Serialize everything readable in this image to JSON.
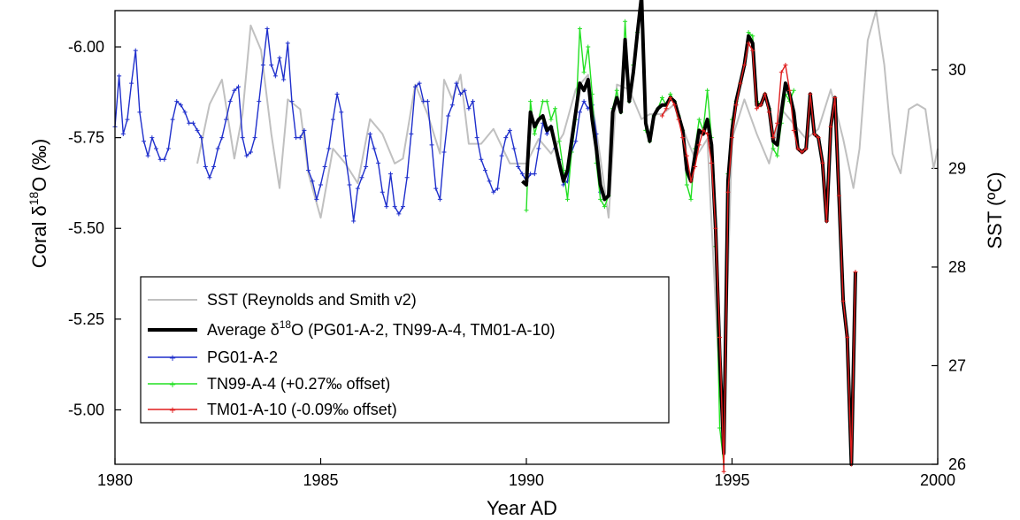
{
  "chart_data": {
    "type": "line",
    "title": "",
    "xlabel": "Year AD",
    "ylabel": {
      "pre": "Coral δ",
      "sup": "18",
      "post": "O (‰)"
    },
    "y2label": "SST (ºC)",
    "xlim": [
      1980,
      2000
    ],
    "ylim": [
      -6.1,
      -4.85
    ],
    "y_inverted": true,
    "y2lim": [
      26,
      30.6
    ],
    "x_ticks": [
      "1980",
      "1985",
      "1990",
      "1995",
      "2000"
    ],
    "y_ticks": [
      "-6.00",
      "-5.75",
      "-5.50",
      "-5.25",
      "-5.00"
    ],
    "y2_ticks": [
      "26",
      "27",
      "28",
      "29",
      "30"
    ],
    "grid": false,
    "legend_position": "bottom-left",
    "legend": [
      {
        "label": "SST (Reynolds and Smith v2)",
        "color": "#c0c0c0"
      },
      {
        "label_pre": "Average δ",
        "label_sup": "18",
        "label_post": "O (PG01-A-2, TN99-A-4, TM01-A-10)",
        "color": "#000000"
      },
      {
        "label": "PG01-A-2",
        "color": "#1f2fcc"
      },
      {
        "label": "TN99-A-4 (+0.27‰ offset)",
        "color": "#22e022"
      },
      {
        "label": "TM01-A-10 (-0.09‰ offset)",
        "color": "#e01e1e"
      }
    ],
    "series": [
      {
        "id": "sst",
        "axis": "y2",
        "color": "#c0c0c0",
        "x": [
          1982.0,
          1982.3,
          1982.6,
          1982.9,
          1983.1,
          1983.3,
          1983.55,
          1983.8,
          1984.0,
          1984.2,
          1984.5,
          1984.7,
          1985.0,
          1985.3,
          1985.6,
          1985.9,
          1986.2,
          1986.5,
          1986.8,
          1987.0,
          1987.3,
          1987.6,
          1987.9,
          1988.0,
          1988.2,
          1988.4,
          1988.6,
          1988.9,
          1989.2,
          1989.6,
          1990.0,
          1990.3,
          1990.6,
          1990.9,
          1991.2,
          1991.5,
          1991.8,
          1992.0,
          1992.2,
          1992.5,
          1992.8,
          1993.0,
          1993.3,
          1993.6,
          1993.9,
          1994.1,
          1994.4,
          1994.65,
          1994.8,
          1995.0,
          1995.3,
          1995.6,
          1995.9,
          1996.2,
          1996.5,
          1996.8,
          1997.1,
          1997.4,
          1997.7,
          1997.95,
          1998.1,
          1998.3,
          1998.5,
          1998.7,
          1998.9,
          1999.1,
          1999.3,
          1999.5,
          1999.7,
          1999.9,
          2000.0
        ],
        "y": [
          29.05,
          29.65,
          29.9,
          29.1,
          29.55,
          30.45,
          30.2,
          29.35,
          28.8,
          29.7,
          29.6,
          28.95,
          28.5,
          29.2,
          29.05,
          28.85,
          29.5,
          29.35,
          29.05,
          29.1,
          29.85,
          29.55,
          29.15,
          29.9,
          29.7,
          29.95,
          29.25,
          29.25,
          29.4,
          29.05,
          29.05,
          29.3,
          29.15,
          29.35,
          29.8,
          29.95,
          29.1,
          28.5,
          29.85,
          29.8,
          29.5,
          29.55,
          29.55,
          29.65,
          29.3,
          29.1,
          29.3,
          27.2,
          26.55,
          29.3,
          29.7,
          29.35,
          29.05,
          29.6,
          29.45,
          29.3,
          29.4,
          29.8,
          29.3,
          28.8,
          29.2,
          30.3,
          30.6,
          30.05,
          29.15,
          28.95,
          29.6,
          29.65,
          29.6,
          29.0,
          29.2
        ]
      },
      {
        "id": "pg01",
        "axis": "y",
        "color": "#1f2fcc",
        "x": [
          1980.0,
          1980.1,
          1980.2,
          1980.3,
          1980.4,
          1980.5,
          1980.6,
          1980.7,
          1980.8,
          1980.9,
          1981.0,
          1981.1,
          1981.2,
          1981.3,
          1981.4,
          1981.5,
          1981.6,
          1981.7,
          1981.8,
          1981.9,
          1982.0,
          1982.1,
          1982.2,
          1982.3,
          1982.4,
          1982.5,
          1982.6,
          1982.7,
          1982.8,
          1982.9,
          1983.0,
          1983.1,
          1983.2,
          1983.3,
          1983.4,
          1983.5,
          1983.6,
          1983.7,
          1983.8,
          1983.9,
          1984.0,
          1984.1,
          1984.2,
          1984.3,
          1984.4,
          1984.5,
          1984.6,
          1984.7,
          1984.8,
          1984.9,
          1985.0,
          1985.1,
          1985.2,
          1985.3,
          1985.4,
          1985.5,
          1985.6,
          1985.7,
          1985.8,
          1985.9,
          1986.0,
          1986.1,
          1986.2,
          1986.3,
          1986.4,
          1986.5,
          1986.6,
          1986.7,
          1986.8,
          1986.9,
          1987.0,
          1987.1,
          1987.2,
          1987.3,
          1987.4,
          1987.5,
          1987.6,
          1987.7,
          1987.8,
          1987.9,
          1988.0,
          1988.1,
          1988.2,
          1988.3,
          1988.4,
          1988.5,
          1988.6,
          1988.7,
          1988.8,
          1988.9,
          1989.0,
          1989.1,
          1989.2,
          1989.3,
          1989.4,
          1989.5,
          1989.6,
          1989.7,
          1989.8,
          1989.9,
          1990.0,
          1990.1,
          1990.2,
          1990.3,
          1990.4,
          1990.5,
          1990.6,
          1990.7,
          1990.8,
          1990.9,
          1991.0,
          1991.1,
          1991.2,
          1991.3,
          1991.4,
          1991.5,
          1991.6,
          1991.7,
          1991.8
        ],
        "y": [
          -5.78,
          -5.92,
          -5.76,
          -5.8,
          -5.9,
          -5.99,
          -5.82,
          -5.74,
          -5.7,
          -5.75,
          -5.72,
          -5.69,
          -5.69,
          -5.72,
          -5.8,
          -5.85,
          -5.84,
          -5.82,
          -5.79,
          -5.79,
          -5.77,
          -5.75,
          -5.67,
          -5.64,
          -5.67,
          -5.72,
          -5.75,
          -5.8,
          -5.85,
          -5.88,
          -5.89,
          -5.75,
          -5.7,
          -5.71,
          -5.75,
          -5.85,
          -5.95,
          -6.05,
          -5.95,
          -5.92,
          -5.97,
          -5.91,
          -6.01,
          -5.85,
          -5.75,
          -5.75,
          -5.77,
          -5.66,
          -5.63,
          -5.58,
          -5.62,
          -5.67,
          -5.72,
          -5.8,
          -5.87,
          -5.82,
          -5.7,
          -5.62,
          -5.52,
          -5.61,
          -5.64,
          -5.67,
          -5.76,
          -5.72,
          -5.68,
          -5.6,
          -5.56,
          -5.65,
          -5.56,
          -5.54,
          -5.56,
          -5.64,
          -5.76,
          -5.89,
          -5.9,
          -5.85,
          -5.85,
          -5.73,
          -5.61,
          -5.58,
          -5.71,
          -5.81,
          -5.84,
          -5.9,
          -5.87,
          -5.88,
          -5.83,
          -5.85,
          -5.75,
          -5.69,
          -5.66,
          -5.63,
          -5.6,
          -5.61,
          -5.7,
          -5.75,
          -5.77,
          -5.72,
          -5.67,
          -5.65,
          -5.63,
          -5.65,
          -5.65,
          -5.72,
          -5.79,
          -5.76,
          -5.78,
          -5.72,
          -5.69,
          -5.62,
          -5.63,
          -5.71,
          -5.74,
          -5.82,
          -5.85,
          -5.83,
          -5.84,
          -5.76,
          -5.6
        ]
      },
      {
        "id": "tn99",
        "axis": "y",
        "color": "#22e022",
        "x": [
          1990.0,
          1990.1,
          1990.2,
          1990.3,
          1990.4,
          1990.5,
          1990.6,
          1990.7,
          1990.8,
          1990.9,
          1991.0,
          1991.1,
          1991.2,
          1991.3,
          1991.4,
          1991.5,
          1991.6,
          1991.7,
          1991.8,
          1991.9,
          1992.0,
          1992.1,
          1992.2,
          1992.3,
          1992.4,
          1992.5,
          1992.6,
          1992.7,
          1992.8,
          1992.9,
          1993.0,
          1993.1,
          1993.2,
          1993.3,
          1993.4,
          1993.5,
          1993.6,
          1993.7,
          1993.8,
          1993.9,
          1994.0,
          1994.1,
          1994.2,
          1994.3,
          1994.4,
          1994.5,
          1994.6,
          1994.7,
          1994.8,
          1994.9,
          1995.0,
          1995.1,
          1995.2,
          1995.3,
          1995.4,
          1995.5,
          1995.6,
          1995.7,
          1995.8,
          1995.9,
          1996.0,
          1996.1,
          1996.2,
          1996.3,
          1996.4,
          1996.5
        ],
        "y": [
          -5.55,
          -5.85,
          -5.76,
          -5.8,
          -5.85,
          -5.85,
          -5.8,
          -5.83,
          -5.74,
          -5.66,
          -5.58,
          -5.71,
          -5.8,
          -6.05,
          -5.93,
          -6.0,
          -5.87,
          -5.68,
          -5.58,
          -5.56,
          -5.59,
          -5.83,
          -5.88,
          -5.82,
          -6.07,
          -5.85,
          -5.95,
          -6.04,
          -6.16,
          -5.77,
          -5.74,
          -5.81,
          -5.83,
          -5.86,
          -5.84,
          -5.87,
          -5.85,
          -5.81,
          -5.77,
          -5.62,
          -5.58,
          -5.72,
          -5.8,
          -5.77,
          -5.88,
          -5.75,
          -5.45,
          -4.95,
          -4.85,
          -5.65,
          -5.8,
          -5.85,
          -5.9,
          -5.95,
          -6.04,
          -6.03,
          -5.85,
          -5.84,
          -5.87,
          -5.83,
          -5.72,
          -5.7,
          -5.79,
          -5.87,
          -5.85,
          -5.88
        ]
      },
      {
        "id": "tm01",
        "axis": "y",
        "color": "#e01e1e",
        "x": [
          1993.3,
          1993.4,
          1993.5,
          1993.6,
          1993.7,
          1993.8,
          1993.9,
          1994.0,
          1994.1,
          1994.2,
          1994.3,
          1994.4,
          1994.5,
          1994.6,
          1994.7,
          1994.8,
          1994.9,
          1995.0,
          1995.1,
          1995.2,
          1995.3,
          1995.4,
          1995.5,
          1995.6,
          1995.7,
          1995.8,
          1995.9,
          1996.0,
          1996.1,
          1996.2,
          1996.3,
          1996.4,
          1996.5,
          1996.6,
          1996.7,
          1996.8,
          1996.9,
          1997.0,
          1997.1,
          1997.2,
          1997.3,
          1997.4,
          1997.5,
          1997.6,
          1997.7,
          1997.8,
          1997.9,
          1998.0
        ],
        "y": [
          -5.81,
          -5.83,
          -5.86,
          -5.84,
          -5.8,
          -5.75,
          -5.7,
          -5.63,
          -5.67,
          -5.73,
          -5.77,
          -5.76,
          -5.68,
          -5.5,
          -5.2,
          -4.83,
          -5.6,
          -5.75,
          -5.84,
          -5.9,
          -5.95,
          -6.01,
          -5.99,
          -5.83,
          -5.84,
          -5.87,
          -5.82,
          -5.75,
          -5.79,
          -5.93,
          -5.95,
          -5.88,
          -5.77,
          -5.72,
          -5.71,
          -5.72,
          -5.87,
          -5.76,
          -5.75,
          -5.68,
          -5.52,
          -5.78,
          -5.86,
          -5.59,
          -5.3,
          -5.2,
          -4.85,
          -5.38
        ]
      },
      {
        "id": "average",
        "axis": "y",
        "color": "#000000",
        "x": [
          1989.9,
          1990.0,
          1990.1,
          1990.2,
          1990.3,
          1990.4,
          1990.5,
          1990.6,
          1990.7,
          1990.8,
          1990.9,
          1991.0,
          1991.1,
          1991.2,
          1991.3,
          1991.4,
          1991.5,
          1991.6,
          1991.7,
          1991.8,
          1991.9,
          1992.0,
          1992.1,
          1992.2,
          1992.3,
          1992.4,
          1992.5,
          1992.6,
          1992.7,
          1992.8,
          1992.9,
          1993.0,
          1993.1,
          1993.2,
          1993.3,
          1993.4,
          1993.5,
          1993.6,
          1993.7,
          1993.8,
          1993.9,
          1994.0,
          1994.1,
          1994.2,
          1994.3,
          1994.4,
          1994.5,
          1994.6,
          1994.7,
          1994.8,
          1994.9,
          1995.0,
          1995.1,
          1995.2,
          1995.3,
          1995.4,
          1995.5,
          1995.6,
          1995.7,
          1995.8,
          1995.9,
          1996.0,
          1996.1,
          1996.2,
          1996.3,
          1996.4,
          1996.5,
          1996.6,
          1996.7,
          1996.8,
          1996.9,
          1997.0,
          1997.1,
          1997.2,
          1997.3,
          1997.4,
          1997.5,
          1997.6,
          1997.7,
          1997.8,
          1997.9,
          1998.0
        ],
        "y": [
          -5.63,
          -5.62,
          -5.82,
          -5.78,
          -5.8,
          -5.81,
          -5.77,
          -5.78,
          -5.73,
          -5.68,
          -5.63,
          -5.66,
          -5.74,
          -5.82,
          -5.9,
          -5.88,
          -5.91,
          -5.8,
          -5.72,
          -5.62,
          -5.58,
          -5.59,
          -5.82,
          -5.86,
          -5.82,
          -6.02,
          -5.85,
          -5.93,
          -6.04,
          -6.14,
          -5.79,
          -5.74,
          -5.81,
          -5.83,
          -5.84,
          -5.84,
          -5.86,
          -5.85,
          -5.81,
          -5.77,
          -5.66,
          -5.63,
          -5.7,
          -5.77,
          -5.76,
          -5.8,
          -5.73,
          -5.5,
          -5.15,
          -4.88,
          -5.63,
          -5.77,
          -5.85,
          -5.9,
          -5.95,
          -6.03,
          -6.01,
          -5.84,
          -5.84,
          -5.87,
          -5.83,
          -5.74,
          -5.73,
          -5.82,
          -5.9,
          -5.87,
          -5.82,
          -5.72,
          -5.71,
          -5.72,
          -5.87,
          -5.76,
          -5.75,
          -5.68,
          -5.52,
          -5.78,
          -5.86,
          -5.59,
          -5.3,
          -5.2,
          -4.85,
          -5.38
        ]
      }
    ]
  }
}
